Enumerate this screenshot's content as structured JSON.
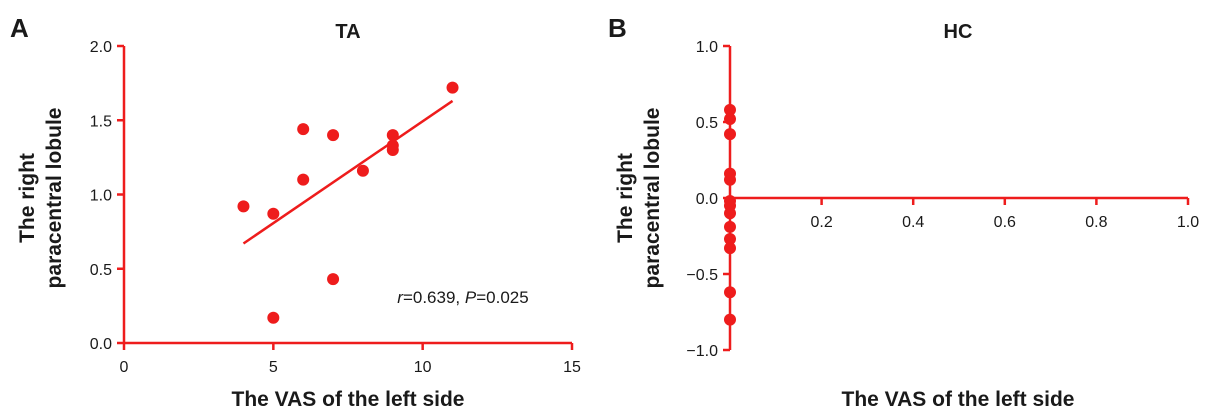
{
  "chart_data": [
    {
      "type": "scatter",
      "panel": "A",
      "title": "TA",
      "xlabel": "The VAS of the left side",
      "ylabel": [
        "The right",
        "paracentral lobule"
      ],
      "xlim": [
        0,
        15
      ],
      "ylim": [
        0.0,
        2.0
      ],
      "xticks": [
        "0",
        "5",
        "10",
        "15"
      ],
      "yticks": [
        "0.0",
        "0.5",
        "1.0",
        "1.5",
        "2.0"
      ],
      "x": [
        4,
        5,
        5,
        6,
        6,
        7,
        7,
        8,
        9,
        9,
        9,
        11
      ],
      "y": [
        0.92,
        0.87,
        0.17,
        1.44,
        1.1,
        1.4,
        0.43,
        1.16,
        1.4,
        1.33,
        1.3,
        1.72
      ],
      "fit_line": {
        "x": [
          4,
          11
        ],
        "y": [
          0.67,
          1.63
        ]
      },
      "annotation": {
        "r_label": "r",
        "r_value": "=0.639, ",
        "p_label": "P",
        "p_value": "=0.025"
      },
      "color": "#ee1c1c",
      "grid": false
    },
    {
      "type": "scatter",
      "panel": "B",
      "title": "HC",
      "xlabel": "The VAS of the left side",
      "ylabel": [
        "The right",
        "paracentral lobule"
      ],
      "xlim": [
        0,
        1.0
      ],
      "ylim": [
        -1.0,
        1.0
      ],
      "xticks": [
        "0.2",
        "0.4",
        "0.6",
        "0.8",
        "1.0"
      ],
      "yticks": [
        "−1.0",
        "−0.5",
        "0.0",
        "0.5",
        "1.0"
      ],
      "x": [
        0,
        0,
        0,
        0,
        0,
        0,
        0,
        0,
        0,
        0,
        0,
        0,
        0
      ],
      "y": [
        0.58,
        0.52,
        0.42,
        0.16,
        0.12,
        -0.02,
        -0.1,
        -0.19,
        -0.27,
        -0.33,
        -0.62,
        -0.8,
        -0.05
      ],
      "color": "#ee1c1c",
      "grid": false
    }
  ]
}
